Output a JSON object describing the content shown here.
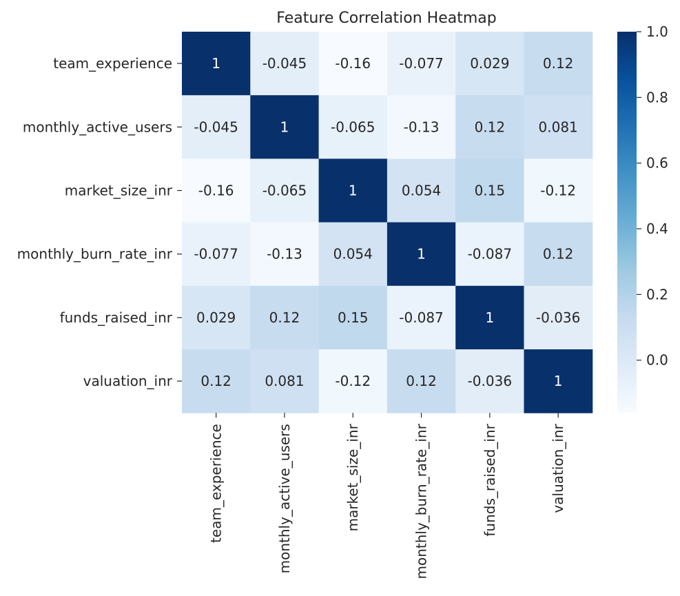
{
  "chart_data": {
    "type": "heatmap",
    "title": "Feature Correlation Heatmap",
    "xlabel": "",
    "ylabel": "",
    "row_labels": [
      "team_experience",
      "monthly_active_users",
      "market_size_inr",
      "monthly_burn_rate_inr",
      "funds_raised_inr",
      "valuation_inr"
    ],
    "col_labels": [
      "team_experience",
      "monthly_active_users",
      "market_size_inr",
      "monthly_burn_rate_inr",
      "funds_raised_inr",
      "valuation_inr"
    ],
    "values": [
      [
        1,
        -0.045,
        -0.16,
        -0.077,
        0.029,
        0.12
      ],
      [
        -0.045,
        1,
        -0.065,
        -0.13,
        0.12,
        0.081
      ],
      [
        -0.16,
        -0.065,
        1,
        0.054,
        0.15,
        -0.12
      ],
      [
        -0.077,
        -0.13,
        0.054,
        1,
        -0.087,
        0.12
      ],
      [
        0.029,
        0.12,
        0.15,
        -0.087,
        1,
        -0.036
      ],
      [
        0.12,
        0.081,
        -0.12,
        0.12,
        -0.036,
        1
      ]
    ],
    "value_labels": [
      [
        "1",
        "-0.045",
        "-0.16",
        "-0.077",
        "0.029",
        "0.12"
      ],
      [
        "-0.045",
        "1",
        "-0.065",
        "-0.13",
        "0.12",
        "0.081"
      ],
      [
        "-0.16",
        "-0.065",
        "1",
        "0.054",
        "0.15",
        "-0.12"
      ],
      [
        "-0.077",
        "-0.13",
        "0.054",
        "1",
        "-0.087",
        "0.12"
      ],
      [
        "0.029",
        "0.12",
        "0.15",
        "-0.087",
        "1",
        "-0.036"
      ],
      [
        "0.12",
        "0.081",
        "-0.12",
        "0.12",
        "-0.036",
        "1"
      ]
    ],
    "colormap": "Blues",
    "color_range": [
      -0.16,
      1.0
    ],
    "colorbar_ticks": [
      0.0,
      0.2,
      0.4,
      0.6,
      0.8,
      1.0
    ],
    "colorbar_tick_labels": [
      "0.0",
      "0.2",
      "0.4",
      "0.6",
      "0.8",
      "1.0"
    ],
    "colorbar_position": "right",
    "grid": false
  }
}
